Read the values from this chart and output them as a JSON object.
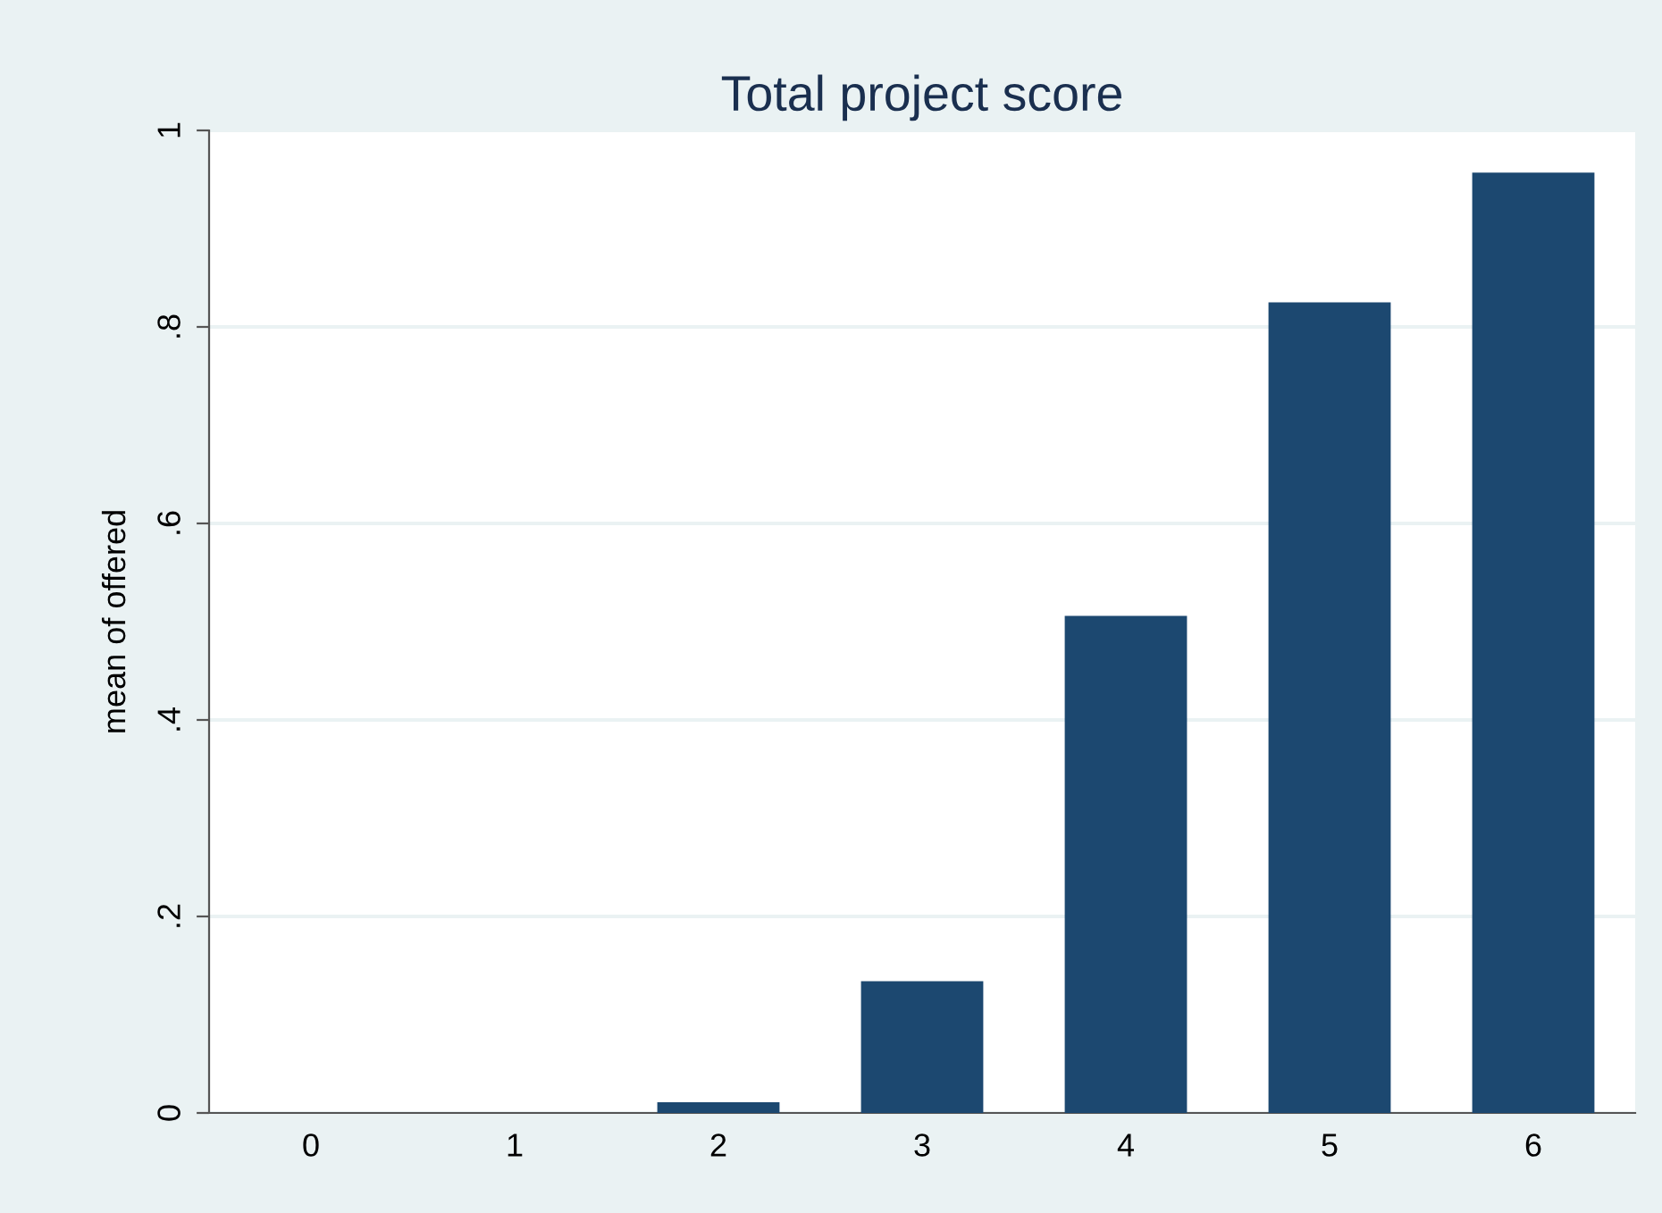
{
  "chart_data": {
    "type": "bar",
    "title": "Total project score",
    "ylabel": "mean of offered",
    "categories": [
      "0",
      "1",
      "2",
      "3",
      "4",
      "5",
      "6"
    ],
    "values": [
      0,
      0,
      0.011,
      0.134,
      0.506,
      0.825,
      0.957
    ],
    "color": "#1c4870",
    "ylim": [
      0,
      1
    ],
    "yticks": [
      {
        "value": 0,
        "label": "0"
      },
      {
        "value": 0.2,
        "label": ".2"
      },
      {
        "value": 0.4,
        "label": ".4"
      },
      {
        "value": 0.6,
        "label": ".6"
      },
      {
        "value": 0.8,
        "label": ".8"
      },
      {
        "value": 1,
        "label": "1"
      }
    ],
    "grid": "y"
  }
}
